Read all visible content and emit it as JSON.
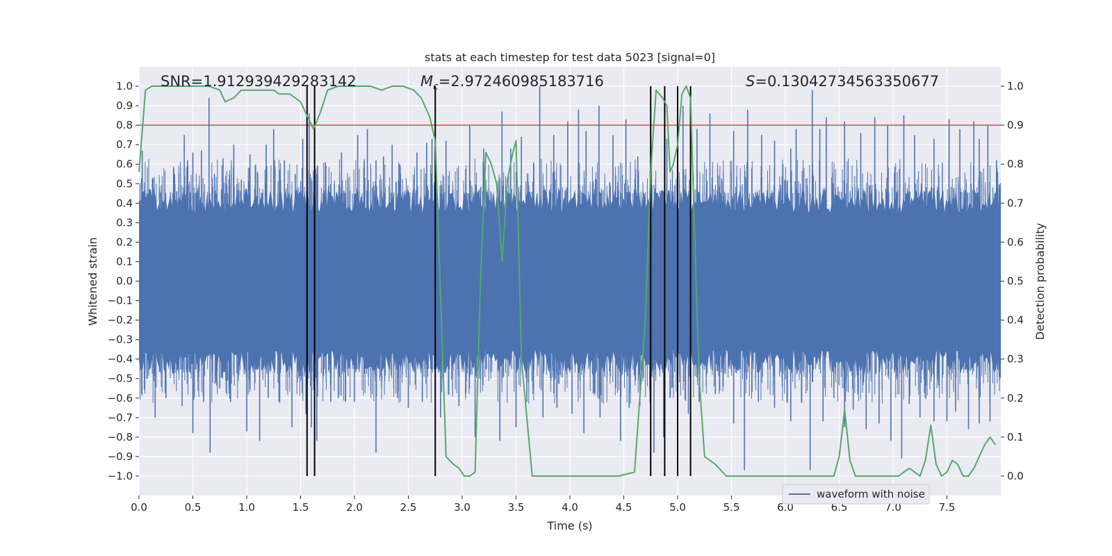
{
  "chart_data": {
    "type": "line",
    "title": "stats at each timestep for test data 5023 [signal=0]",
    "xlabel": "Time (s)",
    "ylabel": "Whitened strain",
    "y2label": "Detection probability",
    "xlim": [
      0.0,
      8.0
    ],
    "ylim": [
      -1.1,
      1.1
    ],
    "y2lim": [
      -0.05,
      1.05
    ],
    "xticks": [
      "0.0",
      "0.5",
      "1.0",
      "1.5",
      "2.0",
      "2.5",
      "3.0",
      "3.5",
      "4.0",
      "4.5",
      "5.0",
      "5.5",
      "6.0",
      "6.5",
      "7.0",
      "7.5"
    ],
    "xtick_values": [
      0.0,
      0.5,
      1.0,
      1.5,
      2.0,
      2.5,
      3.0,
      3.5,
      4.0,
      4.5,
      5.0,
      5.5,
      6.0,
      6.5,
      7.0,
      7.5
    ],
    "yticks": [
      "−1.0",
      "−0.9",
      "−0.8",
      "−0.7",
      "−0.6",
      "−0.5",
      "−0.4",
      "−0.3",
      "−0.2",
      "−0.1",
      "0.0",
      "0.1",
      "0.2",
      "0.3",
      "0.4",
      "0.5",
      "0.6",
      "0.7",
      "0.8",
      "0.9",
      "1.0"
    ],
    "ytick_values": [
      -1.0,
      -0.9,
      -0.8,
      -0.7,
      -0.6,
      -0.5,
      -0.4,
      -0.3,
      -0.2,
      -0.1,
      0.0,
      0.1,
      0.2,
      0.3,
      0.4,
      0.5,
      0.6,
      0.7,
      0.8,
      0.9,
      1.0
    ],
    "y2ticks": [
      "0.0",
      "0.1",
      "0.2",
      "0.3",
      "0.4",
      "0.5",
      "0.6",
      "0.7",
      "0.8",
      "0.9",
      "1.0"
    ],
    "y2tick_values": [
      0.0,
      0.1,
      0.2,
      0.3,
      0.4,
      0.5,
      0.6,
      0.7,
      0.8,
      0.9,
      1.0
    ],
    "grid": true,
    "legend": {
      "position": "lower-right",
      "entries": [
        "waveform with noise"
      ]
    },
    "annotations": {
      "snr": "SNR=1.912939429283142",
      "mc_symbol": "M",
      "mc_subscript": "c",
      "mc_value": "=2.972460985183716",
      "s_symbol": "S",
      "s_value": "=0.13042734563350677"
    },
    "series": [
      {
        "name": "waveform with noise",
        "axis": "left",
        "color": "#4c72b0",
        "envelope_upper": 0.45,
        "envelope_lower": -0.45,
        "spikes_up": [
          [
            0.03,
            0.67
          ],
          [
            0.13,
            0.53
          ],
          [
            0.33,
            0.55
          ],
          [
            0.42,
            0.75
          ],
          [
            0.45,
            0.62
          ],
          [
            0.5,
            0.66
          ],
          [
            0.58,
            0.67
          ],
          [
            0.65,
            0.94
          ],
          [
            0.7,
            0.55
          ],
          [
            0.78,
            0.63
          ],
          [
            0.88,
            0.7
          ],
          [
            0.95,
            0.52
          ],
          [
            1.03,
            0.65
          ],
          [
            1.1,
            0.56
          ],
          [
            1.18,
            0.7
          ],
          [
            1.25,
            0.78
          ],
          [
            1.35,
            0.62
          ],
          [
            1.45,
            0.55
          ],
          [
            1.52,
            0.73
          ],
          [
            1.58,
            0.86
          ],
          [
            1.73,
            0.61
          ],
          [
            1.88,
            0.66
          ],
          [
            2.03,
            0.75
          ],
          [
            2.12,
            0.78
          ],
          [
            2.2,
            0.62
          ],
          [
            2.27,
            0.64
          ],
          [
            2.35,
            0.7
          ],
          [
            2.42,
            0.6
          ],
          [
            2.58,
            0.66
          ],
          [
            2.67,
            0.71
          ],
          [
            2.72,
            0.73
          ],
          [
            2.85,
            0.72
          ],
          [
            3.07,
            0.8
          ],
          [
            3.2,
            0.68
          ],
          [
            3.37,
            0.87
          ],
          [
            3.45,
            0.68
          ],
          [
            3.55,
            0.74
          ],
          [
            3.72,
            1.0
          ],
          [
            3.85,
            0.75
          ],
          [
            3.98,
            0.82
          ],
          [
            4.08,
            0.88
          ],
          [
            4.15,
            0.77
          ],
          [
            4.27,
            0.9
          ],
          [
            4.4,
            0.75
          ],
          [
            4.52,
            0.83
          ],
          [
            4.63,
            0.64
          ],
          [
            4.75,
            0.72
          ],
          [
            4.9,
            0.73
          ],
          [
            5.05,
            0.9
          ],
          [
            5.18,
            0.78
          ],
          [
            5.3,
            0.86
          ],
          [
            5.52,
            0.77
          ],
          [
            5.65,
            0.88
          ],
          [
            5.78,
            0.75
          ],
          [
            5.9,
            0.72
          ],
          [
            6.05,
            0.68
          ],
          [
            6.1,
            0.78
          ],
          [
            6.25,
            0.98
          ],
          [
            6.32,
            0.78
          ],
          [
            6.38,
            0.84
          ],
          [
            6.55,
            0.82
          ],
          [
            6.7,
            0.76
          ],
          [
            6.83,
            0.84
          ],
          [
            6.95,
            0.8
          ],
          [
            7.1,
            0.85
          ],
          [
            7.2,
            0.75
          ],
          [
            7.38,
            0.73
          ],
          [
            7.52,
            0.83
          ],
          [
            7.62,
            0.78
          ],
          [
            7.75,
            0.82
          ],
          [
            7.8,
            0.73
          ],
          [
            7.88,
            0.8
          ],
          [
            7.96,
            0.62
          ]
        ],
        "spikes_down": [
          [
            0.05,
            -0.5
          ],
          [
            0.15,
            -0.7
          ],
          [
            0.25,
            -0.6
          ],
          [
            0.4,
            -0.64
          ],
          [
            0.5,
            -0.78
          ],
          [
            0.6,
            -0.62
          ],
          [
            0.66,
            -0.88
          ],
          [
            0.75,
            -0.55
          ],
          [
            0.85,
            -0.62
          ],
          [
            1.0,
            -0.77
          ],
          [
            1.12,
            -0.82
          ],
          [
            1.2,
            -0.6
          ],
          [
            1.3,
            -0.62
          ],
          [
            1.42,
            -0.75
          ],
          [
            1.55,
            -0.68
          ],
          [
            1.6,
            -0.75
          ],
          [
            1.65,
            -0.82
          ],
          [
            1.78,
            -0.62
          ],
          [
            1.85,
            -0.6
          ],
          [
            2.0,
            -0.62
          ],
          [
            2.2,
            -0.88
          ],
          [
            2.4,
            -0.6
          ],
          [
            2.5,
            -0.65
          ],
          [
            2.63,
            -0.62
          ],
          [
            2.8,
            -0.7
          ],
          [
            2.97,
            -0.64
          ],
          [
            3.12,
            -0.8
          ],
          [
            3.35,
            -0.82
          ],
          [
            3.5,
            -0.75
          ],
          [
            3.6,
            -0.62
          ],
          [
            3.75,
            -0.7
          ],
          [
            3.88,
            -0.65
          ],
          [
            4.02,
            -0.68
          ],
          [
            4.13,
            -0.78
          ],
          [
            4.28,
            -0.7
          ],
          [
            4.47,
            -0.82
          ],
          [
            4.55,
            -0.65
          ],
          [
            4.65,
            -0.64
          ],
          [
            4.78,
            -0.88
          ],
          [
            4.87,
            -0.8
          ],
          [
            4.93,
            -0.6
          ],
          [
            5.1,
            -0.68
          ],
          [
            5.2,
            -0.62
          ],
          [
            5.35,
            -0.58
          ],
          [
            5.52,
            -0.73
          ],
          [
            5.62,
            -0.97
          ],
          [
            5.75,
            -0.62
          ],
          [
            5.9,
            -0.65
          ],
          [
            6.05,
            -0.72
          ],
          [
            6.15,
            -0.62
          ],
          [
            6.23,
            -0.97
          ],
          [
            6.35,
            -0.72
          ],
          [
            6.45,
            -0.6
          ],
          [
            6.55,
            -0.75
          ],
          [
            6.63,
            -0.66
          ],
          [
            6.75,
            -0.76
          ],
          [
            6.87,
            -0.73
          ],
          [
            6.98,
            -0.82
          ],
          [
            7.08,
            -0.91
          ],
          [
            7.15,
            -0.63
          ],
          [
            7.25,
            -0.7
          ],
          [
            7.38,
            -0.72
          ],
          [
            7.5,
            -0.72
          ],
          [
            7.58,
            -0.67
          ],
          [
            7.7,
            -0.76
          ],
          [
            7.8,
            -0.73
          ],
          [
            7.9,
            -0.72
          ]
        ]
      },
      {
        "name": "detection probability",
        "axis": "right",
        "color": "#55a868",
        "x": [
          0.0,
          0.02,
          0.06,
          0.12,
          0.3,
          0.5,
          0.65,
          0.75,
          0.8,
          0.88,
          0.95,
          1.05,
          1.15,
          1.25,
          1.3,
          1.35,
          1.4,
          1.45,
          1.5,
          1.55,
          1.62,
          1.68,
          1.75,
          1.85,
          2.0,
          2.15,
          2.25,
          2.35,
          2.45,
          2.55,
          2.62,
          2.7,
          2.75,
          2.85,
          2.92,
          2.97,
          3.02,
          3.07,
          3.12,
          3.17,
          3.22,
          3.27,
          3.32,
          3.37,
          3.42,
          3.47,
          3.5,
          3.55,
          3.65,
          3.85,
          4.05,
          4.25,
          4.45,
          4.6,
          4.7,
          4.75,
          4.8,
          4.86,
          4.9,
          4.93,
          4.96,
          5.0,
          5.04,
          5.08,
          5.12,
          5.16,
          5.2,
          5.25,
          5.3,
          5.35,
          5.45,
          5.55,
          5.65,
          5.75,
          5.85,
          5.95,
          6.05,
          6.15,
          6.25,
          6.3,
          6.35,
          6.4,
          6.45,
          6.5,
          6.55,
          6.6,
          6.65,
          6.7,
          6.75,
          6.8,
          6.9,
          7.0,
          7.05,
          7.1,
          7.15,
          7.2,
          7.25,
          7.3,
          7.35,
          7.4,
          7.45,
          7.5,
          7.55,
          7.6,
          7.65,
          7.7,
          7.75,
          7.8,
          7.85,
          7.9,
          7.95
        ],
        "values": [
          0.78,
          0.85,
          0.99,
          1.0,
          1.0,
          1.0,
          1.0,
          0.99,
          0.96,
          0.97,
          0.99,
          0.99,
          0.99,
          0.99,
          0.98,
          0.98,
          0.98,
          0.97,
          0.96,
          0.93,
          0.89,
          0.93,
          0.99,
          1.0,
          1.0,
          1.0,
          0.99,
          1.0,
          1.0,
          0.99,
          0.97,
          0.92,
          0.86,
          0.05,
          0.03,
          0.02,
          0.0,
          0.0,
          0.01,
          0.5,
          0.83,
          0.8,
          0.75,
          0.55,
          0.76,
          0.83,
          0.86,
          0.3,
          0.0,
          0.0,
          0.0,
          0.0,
          0.0,
          0.01,
          0.4,
          0.78,
          0.99,
          0.97,
          0.95,
          0.78,
          0.8,
          0.85,
          0.98,
          1.0,
          0.97,
          0.6,
          0.25,
          0.05,
          0.04,
          0.03,
          0.0,
          0.0,
          0.0,
          0.0,
          0.0,
          0.0,
          0.0,
          0.0,
          0.0,
          0.0,
          0.0,
          0.0,
          0.0,
          0.05,
          0.17,
          0.04,
          0.0,
          0.0,
          0.0,
          0.0,
          0.0,
          0.0,
          0.0,
          0.01,
          0.02,
          0.01,
          0.0,
          0.04,
          0.13,
          0.03,
          0.0,
          0.01,
          0.04,
          0.03,
          0.0,
          0.0,
          0.02,
          0.05,
          0.08,
          0.1,
          0.08
        ]
      }
    ],
    "threshold": {
      "axis": "right",
      "value": 0.9,
      "color": "#c44e52"
    },
    "event_lines": [
      1.56,
      1.63,
      2.75,
      4.75,
      4.88,
      5.0,
      5.12
    ],
    "event_line_range": [
      -1.0,
      1.0
    ]
  }
}
